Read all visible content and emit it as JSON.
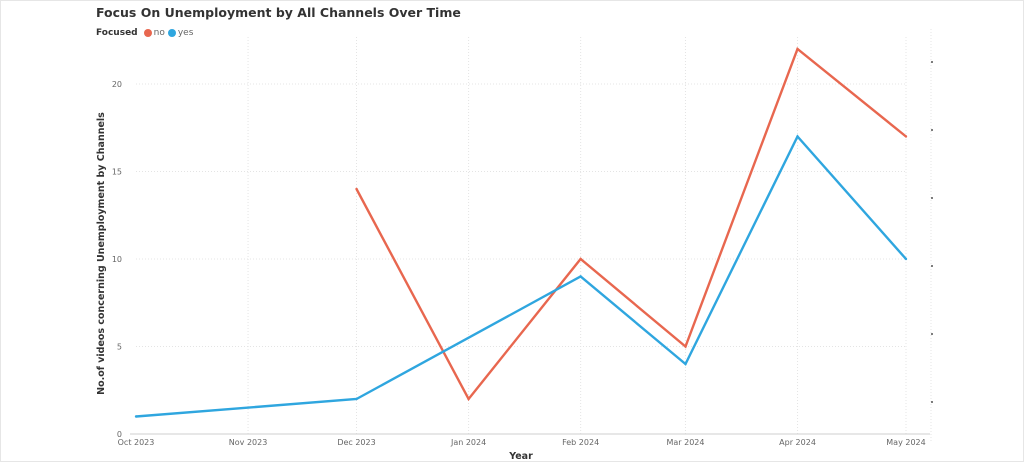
{
  "chart_data": {
    "type": "line",
    "title": "Focus On Unemployment by All Channels Over Time",
    "legend_title": "Focused",
    "legend_position": "top-left",
    "xlabel": "Year",
    "ylabel": "No.of videos concerning Unemployment by Channels",
    "categories": [
      "Oct 2023",
      "Nov 2023",
      "Dec 2023",
      "Jan 2024",
      "Feb 2024",
      "Mar 2024",
      "Apr 2024",
      "May 2024"
    ],
    "x": [
      {
        "label": "Oct 2023",
        "date": "2023-10-01"
      },
      {
        "label": "Nov 2023",
        "date": "2023-11-01"
      },
      {
        "label": "Dec 2023",
        "date": "2023-12-01"
      },
      {
        "label": "Jan 2024",
        "date": "2024-01-01"
      },
      {
        "label": "Feb 2024",
        "date": "2024-02-01"
      },
      {
        "label": "Mar 2024",
        "date": "2024-03-01"
      },
      {
        "label": "Apr 2024",
        "date": "2024-04-01"
      },
      {
        "label": "May 2024",
        "date": "2024-05-01"
      }
    ],
    "yticks": [
      0,
      5,
      10,
      15,
      20
    ],
    "ylim": [
      0,
      22
    ],
    "grid": true,
    "series": [
      {
        "name": "no",
        "color": "#e8674f",
        "points": [
          {
            "date": "2023-12-01",
            "value": 14
          },
          {
            "date": "2024-01-01",
            "value": 2
          },
          {
            "date": "2024-02-01",
            "value": 10
          },
          {
            "date": "2024-03-01",
            "value": 5
          },
          {
            "date": "2024-04-01",
            "value": 22
          },
          {
            "date": "2024-05-01",
            "value": 17
          }
        ]
      },
      {
        "name": "yes",
        "color": "#2fa6df",
        "points": [
          {
            "date": "2023-10-01",
            "value": 1
          },
          {
            "date": "2023-12-01",
            "value": 2
          },
          {
            "date": "2024-02-01",
            "value": 9
          },
          {
            "date": "2024-03-01",
            "value": 4
          },
          {
            "date": "2024-04-01",
            "value": 17
          },
          {
            "date": "2024-05-01",
            "value": 10
          }
        ]
      }
    ]
  }
}
